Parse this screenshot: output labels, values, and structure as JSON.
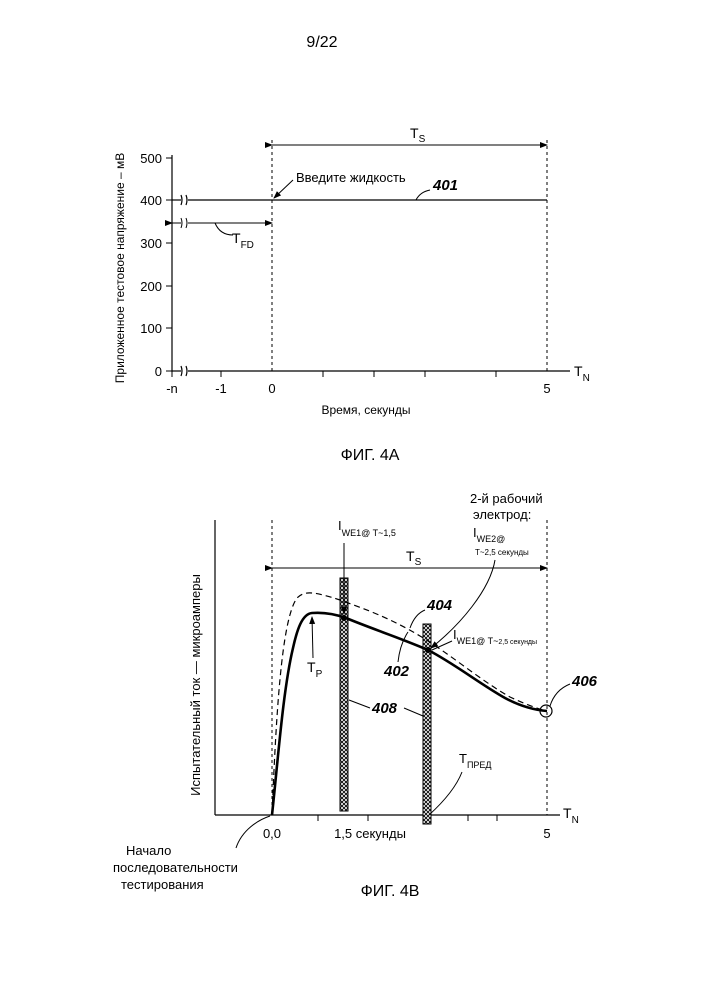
{
  "page_number": "9/22",
  "fig_a": {
    "caption": "ФИГ. 4А",
    "y_axis_label": "Приложенное тестовое напряжение – мВ",
    "x_axis_label": "Время, секунды",
    "y_ticks": [
      "500",
      "400",
      "300",
      "200",
      "100",
      "0"
    ],
    "x_ticks": [
      "-n",
      "-1",
      "0",
      "5"
    ],
    "axis_end_label": "T",
    "axis_end_sub": "N",
    "ts_label": "T",
    "ts_sub": "S",
    "tfd_label": "T",
    "tfd_sub": "FD",
    "annotation_liquid": "Введите жидкость",
    "ref_401": "401"
  },
  "fig_b": {
    "caption": "ФИГ. 4В",
    "y_axis_label": "Испытательный ток — микроамперы",
    "x_ticks": [
      "0,0",
      "1,5 секунды",
      "5"
    ],
    "axis_end_label": "T",
    "axis_end_sub": "N",
    "ts_label": "T",
    "ts_sub": "S",
    "tp_label": "T",
    "tp_sub": "P",
    "tpred_label": "T",
    "tpred_sub": "ПРЕД",
    "iwe1_15_main": "I",
    "iwe1_15_sub": "WE1@ T~1,5",
    "iwe1_25_main": "I",
    "iwe1_25_sub": "WE1@ T~",
    "iwe1_25_small": "2,5 секунды",
    "second_electrode_line1": "2-й рабочий",
    "second_electrode_line2": "электрод:",
    "iwe2_main": "I",
    "iwe2_sub": "WE2@",
    "iwe2_line2": "T~2,5 секунды",
    "ref_402": "402",
    "ref_404": "404",
    "ref_406": "406",
    "ref_408": "408",
    "start_line1": "Начало",
    "start_line2": "последовательности",
    "start_line3": "тестирования"
  }
}
